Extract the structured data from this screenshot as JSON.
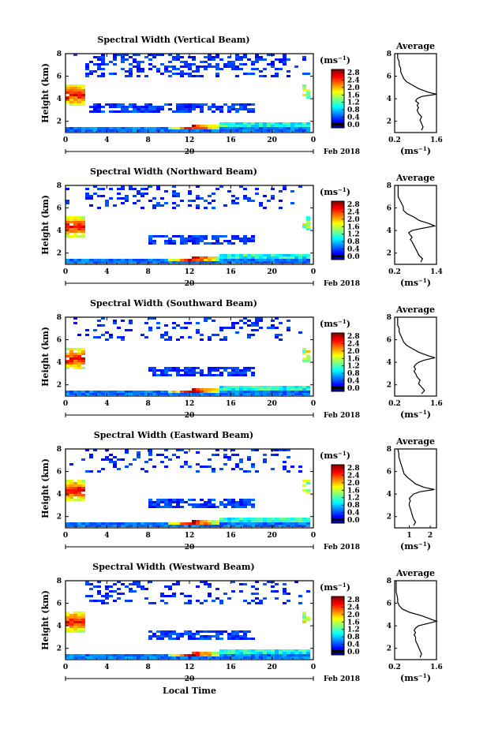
{
  "time_axis_label": "Local Time",
  "panels": [
    {
      "title": "Spectral Width (Vertical Beam)",
      "ylabel": "Height (km)",
      "x_ticks": [
        "0",
        "4",
        "8",
        "12",
        "16",
        "20",
        "0"
      ],
      "y_ticks": [
        "2",
        "4",
        "6",
        "8"
      ],
      "date_day": "20",
      "date_label": "Feb 2018",
      "colorbar_unit": "(ms",
      "colorbar_unit_exp": "−1",
      "colorbar_unit_close": ")",
      "colorbar_ticks": [
        "2.8",
        "2.4",
        "2.0",
        "1.6",
        "1.2",
        "0.8",
        "0.4",
        "0.0"
      ],
      "avg_title": "Average",
      "avg_y_ticks": [
        "2",
        "4",
        "6",
        "8"
      ],
      "avg_x_ticks": [
        "0.2",
        "1.6"
      ],
      "avg_unit": "(ms",
      "avg_unit_exp": "−1",
      "avg_unit_close": ")"
    },
    {
      "title": "Spectral Width (Northward Beam)",
      "ylabel": "Height (km)",
      "x_ticks": [
        "0",
        "4",
        "8",
        "12",
        "16",
        "20",
        "0"
      ],
      "y_ticks": [
        "2",
        "4",
        "6",
        "8"
      ],
      "date_day": "20",
      "date_label": "Feb 2018",
      "colorbar_unit": "(ms",
      "colorbar_unit_exp": "−1",
      "colorbar_unit_close": ")",
      "colorbar_ticks": [
        "2.8",
        "2.4",
        "2.0",
        "1.6",
        "1.2",
        "0.8",
        "0.4",
        "0.0"
      ],
      "avg_title": "Average",
      "avg_y_ticks": [
        "2",
        "4",
        "6",
        "8"
      ],
      "avg_x_ticks": [
        "0.2",
        "1.4"
      ],
      "avg_unit": "(ms",
      "avg_unit_exp": "−1",
      "avg_unit_close": ")"
    },
    {
      "title": "Spectral Width (Southward Beam)",
      "ylabel": "Height (km)",
      "x_ticks": [
        "0",
        "4",
        "8",
        "12",
        "16",
        "20",
        "0"
      ],
      "y_ticks": [
        "2",
        "4",
        "6",
        "8"
      ],
      "date_day": "20",
      "date_label": "Feb 2018",
      "colorbar_unit": "(ms",
      "colorbar_unit_exp": "−1",
      "colorbar_unit_close": ")",
      "colorbar_ticks": [
        "2.8",
        "2.4",
        "2.0",
        "1.6",
        "1.2",
        "0.8",
        "0.4",
        "0.0"
      ],
      "avg_title": "Average",
      "avg_y_ticks": [
        "2",
        "4",
        "6",
        "8"
      ],
      "avg_x_ticks": [
        "0.2",
        "1.6"
      ],
      "avg_unit": "(ms",
      "avg_unit_exp": "−1",
      "avg_unit_close": ")"
    },
    {
      "title": "Spectral Width (Eastward Beam)",
      "ylabel": "Height (km)",
      "x_ticks": [
        "0",
        "4",
        "8",
        "12",
        "16",
        "20",
        "0"
      ],
      "y_ticks": [
        "2",
        "4",
        "6",
        "8"
      ],
      "date_day": "20",
      "date_label": "Feb 2018",
      "colorbar_unit": "(ms",
      "colorbar_unit_exp": "−1",
      "colorbar_unit_close": ")",
      "colorbar_ticks": [
        "2.8",
        "2.4",
        "2.0",
        "1.6",
        "1.2",
        "0.8",
        "0.4",
        "0.0"
      ],
      "avg_title": "Average",
      "avg_y_ticks": [
        "2",
        "4",
        "6",
        "8"
      ],
      "avg_x_ticks": [
        "1",
        "2"
      ],
      "avg_unit": "(ms",
      "avg_unit_exp": "−1",
      "avg_unit_close": ")"
    },
    {
      "title": "Spectral Width (Westward Beam)",
      "ylabel": "Height (km)",
      "x_ticks": [
        "0",
        "4",
        "8",
        "12",
        "16",
        "20",
        "0"
      ],
      "y_ticks": [
        "2",
        "4",
        "6",
        "8"
      ],
      "date_day": "20",
      "date_label": "Feb 2018",
      "colorbar_unit": "(ms",
      "colorbar_unit_exp": "−1",
      "colorbar_unit_close": ")",
      "colorbar_ticks": [
        "2.8",
        "2.4",
        "2.0",
        "1.6",
        "1.2",
        "0.8",
        "0.4",
        "0.0"
      ],
      "avg_title": "Average",
      "avg_y_ticks": [
        "2",
        "4",
        "6",
        "8"
      ],
      "avg_x_ticks": [
        "0.2",
        "1.6"
      ],
      "avg_unit": "(ms",
      "avg_unit_exp": "−1",
      "avg_unit_close": ")"
    }
  ],
  "chart_data": [
    {
      "type": "heatmap",
      "title": "Spectral Width (Vertical Beam)",
      "ylabel": "Height (km)",
      "xlim_hours": [
        0,
        24
      ],
      "ylim_km": [
        1,
        8
      ],
      "colorbar_range": [
        0.0,
        2.8
      ],
      "colormap": "jet",
      "profile": {
        "title": "Average",
        "xlim": [
          0.2,
          1.6
        ],
        "ylim": [
          1,
          8
        ],
        "x": [
          1.1,
          1.15,
          1.1,
          1.05,
          1.1,
          1.0,
          0.95,
          1.0,
          0.95,
          1.0,
          0.9,
          0.95,
          1.1,
          1.6,
          1.3,
          1.0,
          0.8,
          0.6,
          0.5,
          0.45,
          0.4,
          0.4,
          0.35,
          0.35,
          0.3,
          0.3
        ],
        "y": [
          1.2,
          1.5,
          1.8,
          2.1,
          2.4,
          2.7,
          3.0,
          3.2,
          3.4,
          3.6,
          3.8,
          4.0,
          4.2,
          4.4,
          4.6,
          4.9,
          5.2,
          5.5,
          5.8,
          6.1,
          6.4,
          6.7,
          7.0,
          7.3,
          7.6,
          8.0
        ]
      }
    },
    {
      "type": "heatmap",
      "title": "Spectral Width (Northward Beam)",
      "ylabel": "Height (km)",
      "xlim_hours": [
        0,
        24
      ],
      "ylim_km": [
        1,
        8
      ],
      "colorbar_range": [
        0.0,
        2.8
      ],
      "colormap": "jet",
      "profile": {
        "title": "Average",
        "xlim": [
          0.2,
          1.4
        ],
        "ylim": [
          1,
          8
        ],
        "x": [
          0.95,
          1.0,
          0.9,
          0.85,
          0.8,
          0.75,
          0.7,
          0.65,
          0.7,
          0.65,
          0.6,
          0.7,
          1.0,
          1.35,
          1.2,
          0.9,
          0.75,
          0.55,
          0.45,
          0.45,
          0.4,
          0.35,
          0.3,
          0.3,
          0.3,
          0.3
        ],
        "y": [
          1.2,
          1.5,
          1.8,
          2.1,
          2.4,
          2.7,
          3.0,
          3.2,
          3.4,
          3.6,
          3.8,
          4.0,
          4.2,
          4.4,
          4.6,
          4.9,
          5.2,
          5.5,
          5.8,
          6.1,
          6.4,
          6.7,
          7.0,
          7.3,
          7.6,
          8.0
        ]
      }
    },
    {
      "type": "heatmap",
      "title": "Spectral Width (Southward Beam)",
      "ylabel": "Height (km)",
      "xlim_hours": [
        0,
        24
      ],
      "ylim_km": [
        1,
        8
      ],
      "colorbar_range": [
        0.0,
        2.8
      ],
      "colormap": "jet",
      "profile": {
        "title": "Average",
        "xlim": [
          0.2,
          1.6
        ],
        "ylim": [
          1,
          8
        ],
        "x": [
          1.1,
          1.2,
          1.1,
          1.0,
          1.05,
          0.95,
          0.9,
          0.85,
          0.9,
          0.85,
          0.9,
          1.0,
          1.2,
          1.55,
          1.3,
          1.0,
          0.8,
          0.6,
          0.5,
          0.45,
          0.4,
          0.35,
          0.35,
          0.3,
          0.3,
          0.3
        ],
        "y": [
          1.2,
          1.5,
          1.8,
          2.1,
          2.4,
          2.7,
          3.0,
          3.2,
          3.4,
          3.6,
          3.8,
          4.0,
          4.2,
          4.4,
          4.6,
          4.9,
          5.2,
          5.5,
          5.8,
          6.1,
          6.4,
          6.7,
          7.0,
          7.3,
          7.6,
          8.0
        ]
      }
    },
    {
      "type": "heatmap",
      "title": "Spectral Width (Eastward Beam)",
      "ylabel": "Height (km)",
      "xlim_hours": [
        0,
        24
      ],
      "ylim_km": [
        1,
        8
      ],
      "colorbar_range": [
        0.0,
        2.8
      ],
      "colormap": "jet",
      "profile": {
        "title": "Average",
        "xlim": [
          0.3,
          2.3
        ],
        "ylim": [
          1,
          8
        ],
        "x": [
          1.2,
          1.3,
          1.2,
          1.15,
          1.1,
          1.05,
          1.0,
          1.0,
          1.05,
          1.0,
          1.1,
          1.2,
          1.5,
          2.2,
          1.7,
          1.3,
          1.1,
          0.9,
          0.75,
          0.7,
          0.65,
          0.6,
          0.55,
          0.5,
          0.5,
          0.45
        ],
        "y": [
          1.2,
          1.5,
          1.8,
          2.1,
          2.4,
          2.7,
          3.0,
          3.2,
          3.4,
          3.6,
          3.8,
          4.0,
          4.2,
          4.4,
          4.6,
          4.9,
          5.2,
          5.5,
          5.8,
          6.1,
          6.4,
          6.7,
          7.0,
          7.3,
          7.6,
          8.0
        ]
      }
    },
    {
      "type": "heatmap",
      "title": "Spectral Width (Westward Beam)",
      "ylabel": "Height (km)",
      "xlim_hours": [
        0,
        24
      ],
      "ylim_km": [
        1,
        8
      ],
      "colorbar_range": [
        0.0,
        2.8
      ],
      "colormap": "jet",
      "profile": {
        "title": "Average",
        "xlim": [
          0.2,
          1.6
        ],
        "ylim": [
          1,
          8
        ],
        "x": [
          1.05,
          1.1,
          1.05,
          1.0,
          0.95,
          0.9,
          0.9,
          0.85,
          0.9,
          0.85,
          0.9,
          1.0,
          1.3,
          1.6,
          1.4,
          1.1,
          0.7,
          0.45,
          0.35,
          0.3,
          0.3,
          0.28,
          0.25,
          0.25,
          0.25,
          0.25
        ],
        "y": [
          1.2,
          1.5,
          1.8,
          2.1,
          2.4,
          2.7,
          3.0,
          3.2,
          3.4,
          3.6,
          3.8,
          4.0,
          4.2,
          4.4,
          4.6,
          4.9,
          5.2,
          5.5,
          5.8,
          6.1,
          6.4,
          6.7,
          7.0,
          7.3,
          7.6,
          8.0
        ]
      }
    }
  ]
}
